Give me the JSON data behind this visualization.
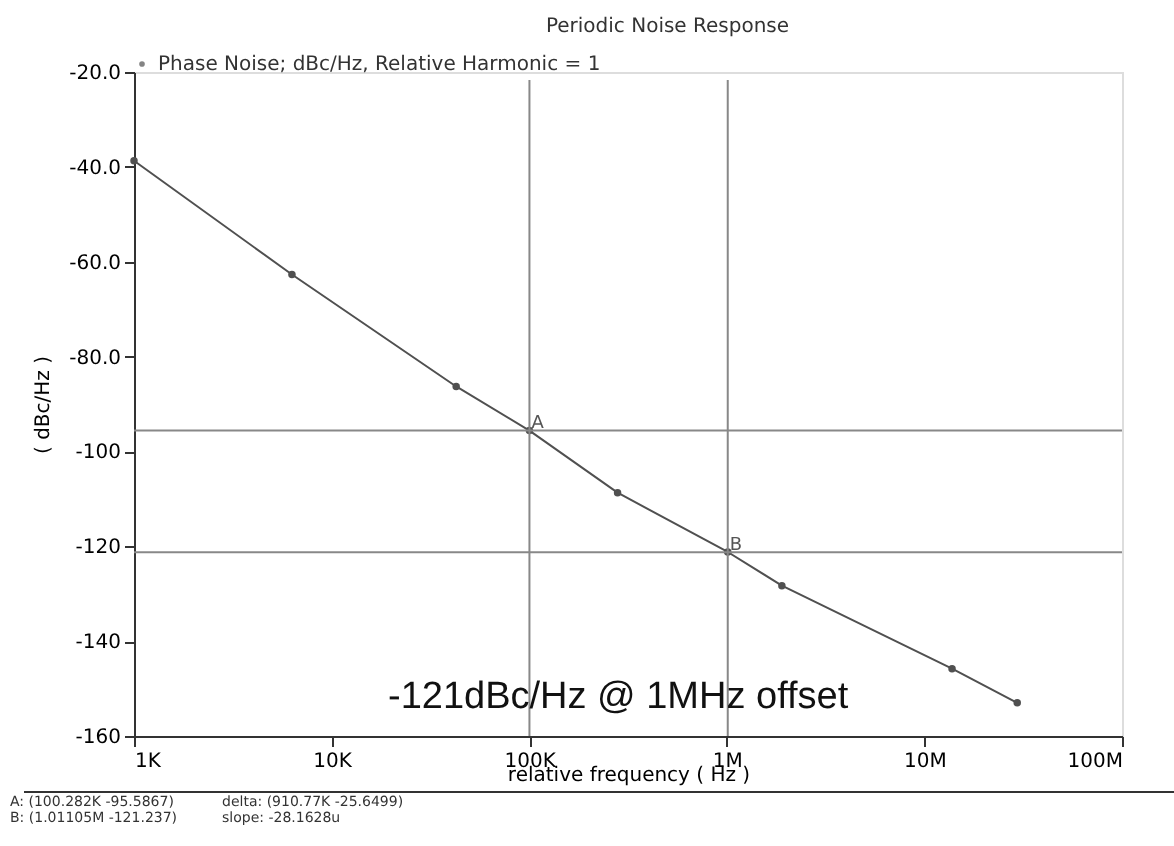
{
  "chart_data": {
    "type": "line",
    "title": "Periodic Noise Response",
    "xlabel": "relative frequency ( Hz )",
    "ylabel": "( dBc/Hz )",
    "x": [
      1000,
      6300,
      42700,
      100282,
      280000,
      1011050,
      1900000,
      13800000,
      29500000
    ],
    "series": [
      {
        "name": "Phase Noise; dBc/Hz, Relative Harmonic = 1",
        "color": "#505050",
        "values": [
          -38.7,
          -62.7,
          -86.3,
          -95.6,
          -108.7,
          -121.2,
          -128.3,
          -145.8,
          -153.0
        ]
      }
    ],
    "log": "x",
    "marker": "circle",
    "line_style": "solid",
    "legend": "top left",
    "grid": false,
    "xlim": [
      1000,
      100000000
    ],
    "xticks": [
      {
        "value": 1000,
        "label": "1K"
      },
      {
        "value": 10000,
        "label": "10K"
      },
      {
        "value": 100000,
        "label": "100K"
      },
      {
        "value": 1000000,
        "label": "1M"
      },
      {
        "value": 10000000,
        "label": "10M"
      },
      {
        "value": 100000000,
        "label": "100M"
      }
    ],
    "ylim": [
      -160,
      -20
    ],
    "yticks": [
      {
        "value": -20,
        "label": "-20.0"
      },
      {
        "value": -40,
        "label": "-40.0"
      },
      {
        "value": -60,
        "label": "-60.0"
      },
      {
        "value": -80,
        "label": "-80.0"
      },
      -100,
      -120,
      -140,
      -160
    ],
    "ref_lines": [
      {
        "axis": "x",
        "value": 100282,
        "color": "#888888"
      },
      {
        "axis": "x",
        "value": 1011050,
        "color": "#888888"
      },
      {
        "axis": "y",
        "value": -95.5867,
        "color": "#888888"
      },
      {
        "axis": "y",
        "value": -121.237,
        "color": "#888888"
      }
    ],
    "annotations": [
      {
        "text": "A",
        "x": 100282,
        "y": -95.5867
      },
      {
        "text": "B",
        "x": 1011050,
        "y": -121.237
      },
      "-121dBc/Hz @ 1MHz offset",
      "A: (100.282K -95.5867)",
      "B: (1.01105M -121.237)",
      "delta: (910.77K -25.6499)",
      "slope: -28.1628u"
    ]
  }
}
